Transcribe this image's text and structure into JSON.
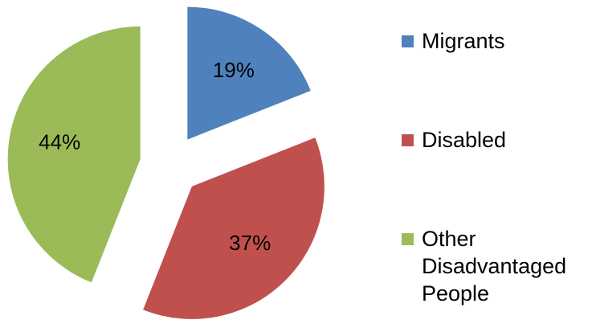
{
  "chart_data": {
    "type": "pie",
    "categories": [
      "Migrants",
      "Disabled",
      "Other Disadvantaged People"
    ],
    "values": [
      19,
      37,
      44
    ],
    "value_labels": [
      "19%",
      "37%",
      "44%"
    ],
    "colors": [
      "#4f81bd",
      "#c0504d",
      "#9bbb59"
    ],
    "legend": "right"
  }
}
